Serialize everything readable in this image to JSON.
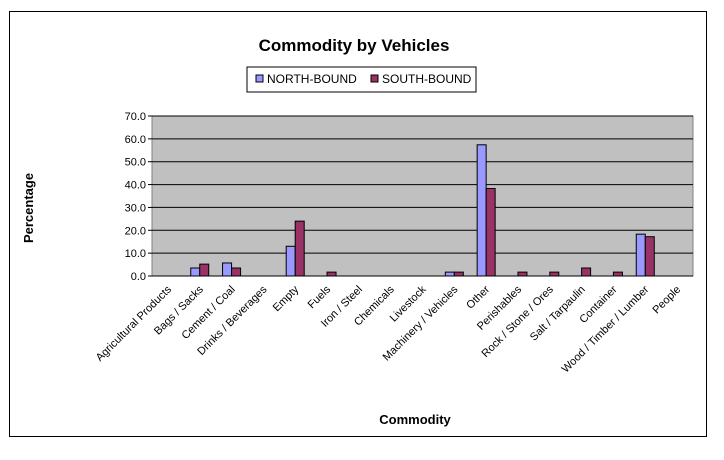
{
  "chart_data": {
    "type": "bar",
    "title": "Commodity by Vehicles",
    "xlabel": "Commodity",
    "ylabel": "Percentage",
    "ylim": [
      0,
      70
    ],
    "yticks": [
      "0.0",
      "10.0",
      "20.0",
      "30.0",
      "40.0",
      "50.0",
      "60.0",
      "70.0"
    ],
    "grid": true,
    "legend_placement": "top-center",
    "plot_background": "#C0C0C0",
    "categories": [
      "Agricultural Products",
      "Bags / Sacks",
      "Cement / Coal",
      "Drinks / Beverages",
      "Empty",
      "Fuels",
      "Iron / Steel",
      "Chemicals",
      "Livestock",
      "Machinery / Vehicles",
      "Other",
      "Perishables",
      "Rock / Stone / Ores",
      "Salt / Tarpaulin",
      "Container",
      "Wood / Timber / Lumber",
      "People"
    ],
    "series": [
      {
        "name": "NORTH-BOUND",
        "color": "#9999FF",
        "values": [
          0,
          3.5,
          5.7,
          0,
          13,
          0,
          0,
          0,
          0,
          1.7,
          57.4,
          0,
          0,
          0,
          0,
          18.3,
          0
        ]
      },
      {
        "name": "SOUTH-BOUND",
        "color": "#993366",
        "values": [
          0,
          5.2,
          3.5,
          0,
          24,
          1.7,
          0,
          0,
          0,
          1.7,
          38.3,
          1.7,
          1.7,
          3.5,
          1.7,
          17.2,
          0
        ]
      }
    ]
  }
}
